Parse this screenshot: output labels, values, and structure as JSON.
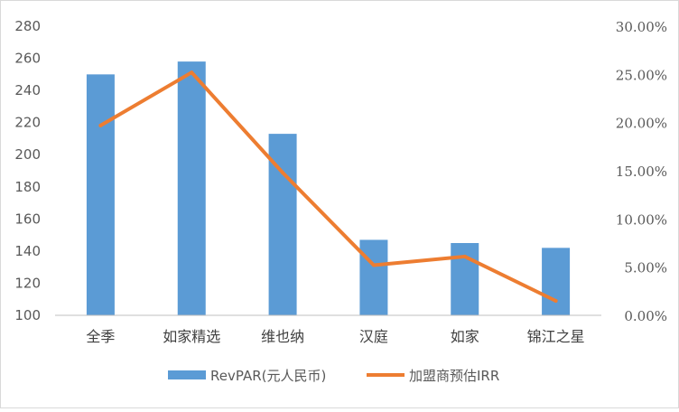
{
  "chart_data": {
    "type": "bar",
    "categories": [
      "全季",
      "如家精选",
      "维也纳",
      "汉庭",
      "如家",
      "锦江之星"
    ],
    "series": [
      {
        "name": "RevPAR(元人民币)",
        "type": "bar",
        "axis": "left",
        "values": [
          250,
          258,
          213,
          147,
          145,
          142
        ]
      },
      {
        "name": "加盟商预估IRR",
        "type": "line",
        "axis": "right",
        "values": [
          0.197,
          0.252,
          0.148,
          0.052,
          0.061,
          0.015
        ]
      }
    ],
    "left_axis": {
      "min": 100,
      "max": 280,
      "step": 20,
      "ticks": [
        "100",
        "120",
        "140",
        "160",
        "180",
        "200",
        "220",
        "240",
        "260",
        "280"
      ]
    },
    "right_axis": {
      "min": 0,
      "max": 0.3,
      "step": 0.05,
      "ticks": [
        "0.00%",
        "5.00%",
        "10.00%",
        "15.00%",
        "20.00%",
        "25.00%",
        "30.00%"
      ]
    },
    "colors": {
      "bar": "#5b9bd5",
      "line": "#ed7d31",
      "axis": "#bfbfbf"
    },
    "grid": false,
    "legend_position": "bottom"
  }
}
